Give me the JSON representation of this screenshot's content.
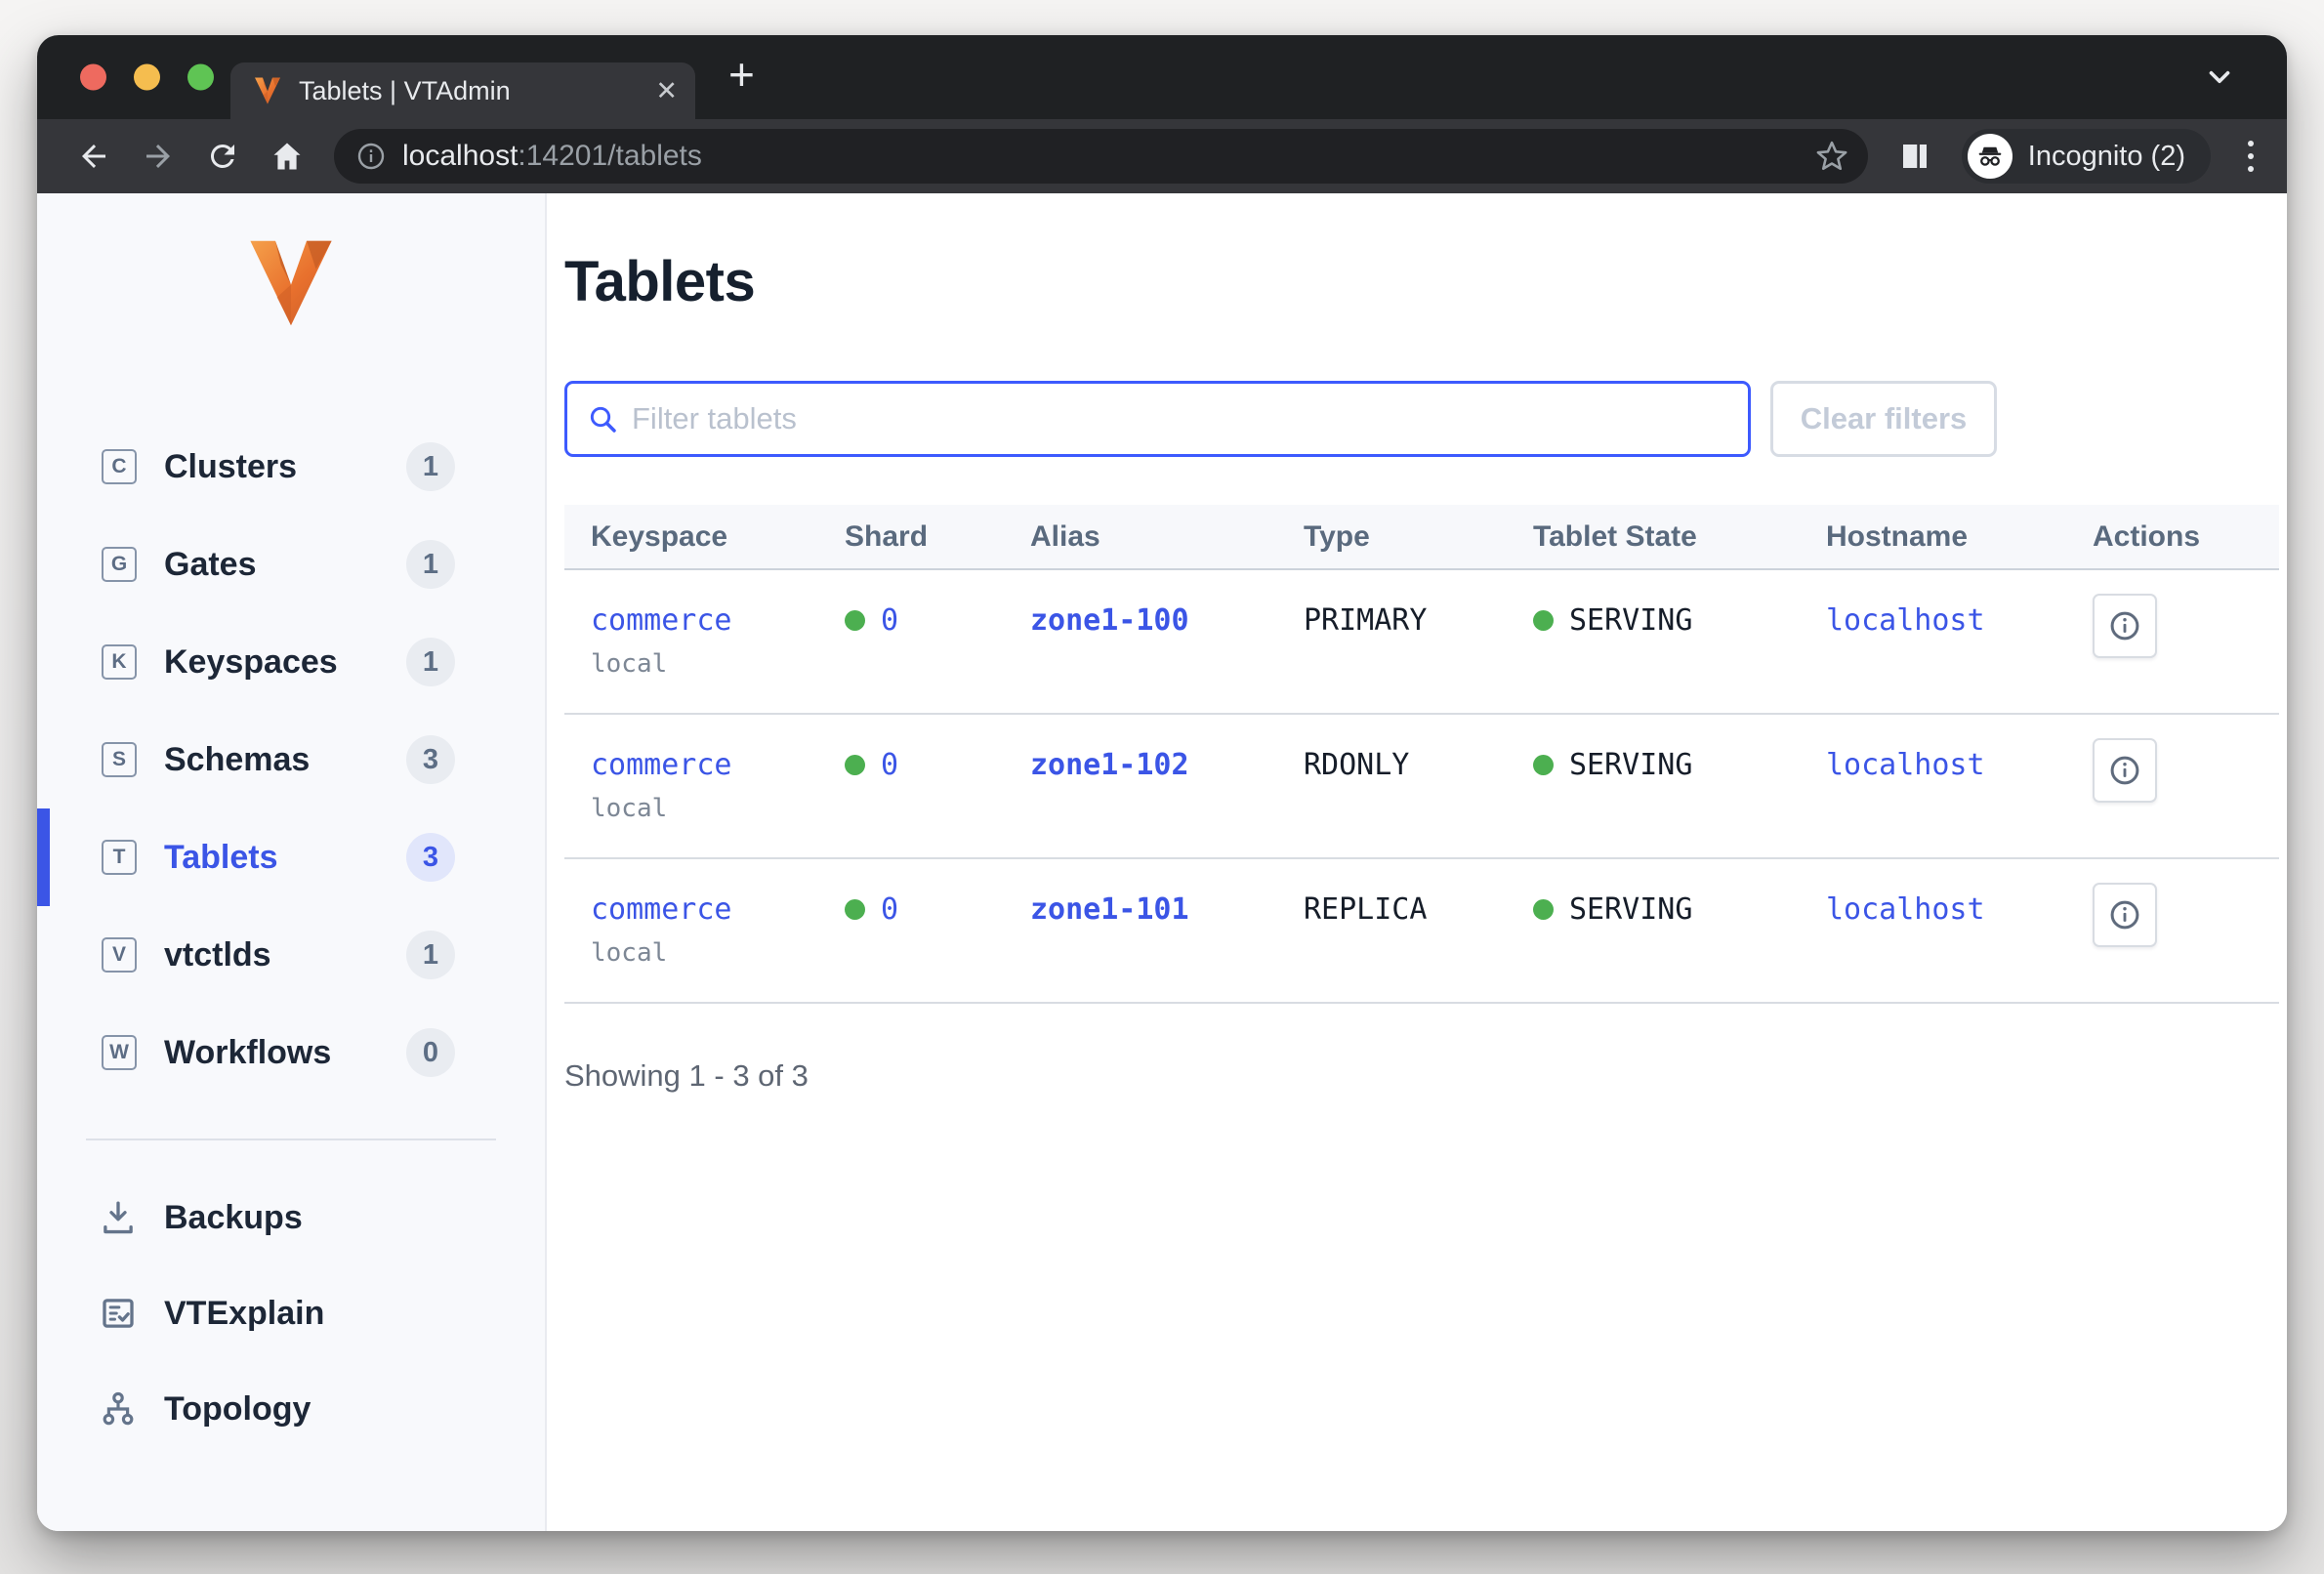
{
  "browser": {
    "tab_title": "Tablets | VTAdmin",
    "tab_close": "✕",
    "new_tab": "+",
    "url_host": "localhost",
    "url_rest": ":14201/tablets",
    "incognito_label": "Incognito (2)"
  },
  "sidebar": {
    "items": [
      {
        "label": "Clusters",
        "letter": "C",
        "count": "1",
        "active": false
      },
      {
        "label": "Gates",
        "letter": "G",
        "count": "1",
        "active": false
      },
      {
        "label": "Keyspaces",
        "letter": "K",
        "count": "1",
        "active": false
      },
      {
        "label": "Schemas",
        "letter": "S",
        "count": "3",
        "active": false
      },
      {
        "label": "Tablets",
        "letter": "T",
        "count": "3",
        "active": true
      },
      {
        "label": "vtctlds",
        "letter": "V",
        "count": "1",
        "active": false
      },
      {
        "label": "Workflows",
        "letter": "W",
        "count": "0",
        "active": false
      }
    ],
    "tools": [
      {
        "label": "Backups",
        "icon": "download-icon"
      },
      {
        "label": "VTExplain",
        "icon": "document-check-icon"
      },
      {
        "label": "Topology",
        "icon": "topology-icon"
      }
    ]
  },
  "main": {
    "title": "Tablets",
    "filter_placeholder": "Filter tablets",
    "clear_label": "Clear filters",
    "table": {
      "columns": [
        "Keyspace",
        "Shard",
        "Alias",
        "Type",
        "Tablet State",
        "Hostname",
        "Actions"
      ],
      "rows": [
        {
          "keyspace": "commerce",
          "cluster": "local",
          "shard": "0",
          "alias": "zone1-100",
          "type": "PRIMARY",
          "state": "SERVING",
          "hostname": "localhost"
        },
        {
          "keyspace": "commerce",
          "cluster": "local",
          "shard": "0",
          "alias": "zone1-102",
          "type": "RDONLY",
          "state": "SERVING",
          "hostname": "localhost"
        },
        {
          "keyspace": "commerce",
          "cluster": "local",
          "shard": "0",
          "alias": "zone1-101",
          "type": "REPLICA",
          "state": "SERVING",
          "hostname": "localhost"
        }
      ]
    },
    "footer": "Showing 1 - 3 of 3"
  },
  "colors": {
    "accent": "#3d5afe",
    "link": "#3b55e6",
    "serving_green": "#4caf50",
    "chrome_tabbar": "#1f2123",
    "chrome_toolbar": "#35363a",
    "sidebar_bg": "#f8f9fc",
    "vitess_orange": "#e8702d"
  }
}
